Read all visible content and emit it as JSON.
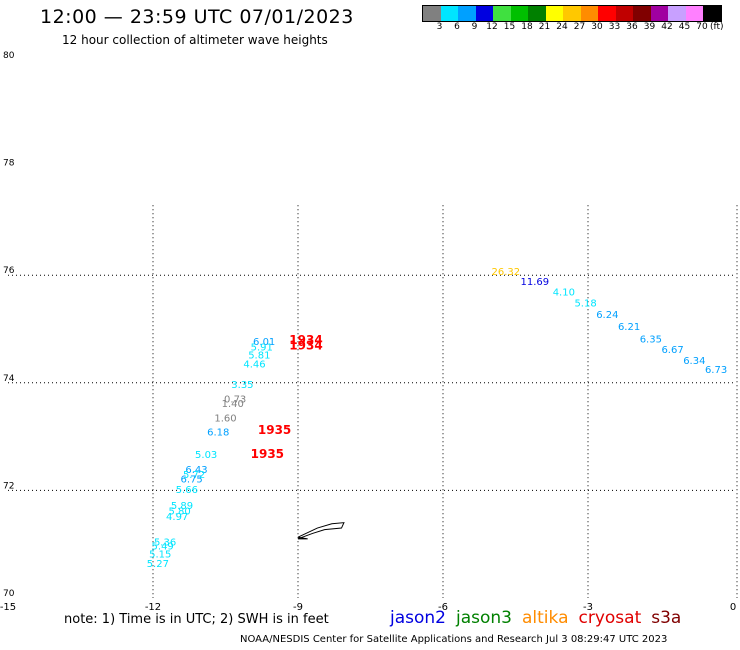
{
  "title": "12:00 — 23:59 UTC 07/01/2023",
  "subtitle": "12 hour collection of altimeter wave heights",
  "legend": {
    "swatches": [
      {
        "label": "3",
        "color": "#808080"
      },
      {
        "label": "6",
        "color": "#00e5ff"
      },
      {
        "label": "9",
        "color": "#00a0ff"
      },
      {
        "label": "12",
        "color": "#0000e0"
      },
      {
        "label": "15",
        "color": "#40e040"
      },
      {
        "label": "18",
        "color": "#00c000"
      },
      {
        "label": "21",
        "color": "#008000"
      },
      {
        "label": "24",
        "color": "#ffff00"
      },
      {
        "label": "27",
        "color": "#ffc800"
      },
      {
        "label": "30",
        "color": "#ff8c00"
      },
      {
        "label": "33",
        "color": "#ff0000"
      },
      {
        "label": "36",
        "color": "#c00000"
      },
      {
        "label": "39",
        "color": "#800000"
      },
      {
        "label": "42",
        "color": "#a000a0"
      },
      {
        "label": "45",
        "color": "#c8a0ff"
      },
      {
        "label": "70",
        "color": "#ff80ff"
      },
      {
        "label": "(ft)",
        "color": "#000000"
      }
    ]
  },
  "chart_data": {
    "type": "scatter",
    "xlim": [
      -15,
      0
    ],
    "ylim": [
      70,
      80
    ],
    "x_ticks": [
      "-15",
      "-12",
      "-9",
      "-6",
      "-3",
      "0"
    ],
    "y_ticks": [
      "70",
      "72",
      "74",
      "76",
      "78",
      "80"
    ],
    "grid": true,
    "times": [
      {
        "label": "1934",
        "x": -9.0,
        "y": 74.72,
        "color": "#ff0000"
      },
      {
        "label": "1934",
        "x": -9.0,
        "y": 74.62,
        "color": "#ff0000"
      },
      {
        "label": "1935",
        "x": -9.65,
        "y": 73.05,
        "color": "#ff0000"
      },
      {
        "label": "1935",
        "x": -9.8,
        "y": 72.6,
        "color": "#ff0000"
      }
    ],
    "points": [
      {
        "label": "26.32",
        "x": -4.7,
        "y": 76.0,
        "color": "#ffc800"
      },
      {
        "label": "11.69",
        "x": -4.1,
        "y": 75.82,
        "color": "#0000e0"
      },
      {
        "label": "4.10",
        "x": -3.5,
        "y": 75.62,
        "color": "#00e5ff"
      },
      {
        "label": "5.18",
        "x": -3.05,
        "y": 75.42,
        "color": "#00e5ff"
      },
      {
        "label": "6.24",
        "x": -2.6,
        "y": 75.2,
        "color": "#00a0ff"
      },
      {
        "label": "6.21",
        "x": -2.15,
        "y": 74.98,
        "color": "#00a0ff"
      },
      {
        "label": "6.35",
        "x": -1.7,
        "y": 74.75,
        "color": "#00a0ff"
      },
      {
        "label": "6.67",
        "x": -1.25,
        "y": 74.55,
        "color": "#00a0ff"
      },
      {
        "label": "6.34",
        "x": -0.8,
        "y": 74.35,
        "color": "#00a0ff"
      },
      {
        "label": "6.73",
        "x": -0.35,
        "y": 74.18,
        "color": "#00a0ff"
      },
      {
        "label": "6.01",
        "x": -9.7,
        "y": 74.7,
        "color": "#00a0ff"
      },
      {
        "label": "5.91",
        "x": -9.75,
        "y": 74.6,
        "color": "#00e5ff"
      },
      {
        "label": "5.81",
        "x": -9.8,
        "y": 74.45,
        "color": "#00e5ff"
      },
      {
        "label": "4.46",
        "x": -9.9,
        "y": 74.28,
        "color": "#00e5ff"
      },
      {
        "label": "3.35",
        "x": -10.15,
        "y": 73.9,
        "color": "#00e5ff"
      },
      {
        "label": "0.73",
        "x": -10.3,
        "y": 73.63,
        "color": "#808080"
      },
      {
        "label": "1.40",
        "x": -10.35,
        "y": 73.55,
        "color": "#808080"
      },
      {
        "label": "1.60",
        "x": -10.5,
        "y": 73.28,
        "color": "#808080"
      },
      {
        "label": "6.18",
        "x": -10.65,
        "y": 73.02,
        "color": "#00a0ff"
      },
      {
        "label": "5.03",
        "x": -10.9,
        "y": 72.6,
        "color": "#00e5ff"
      },
      {
        "label": "6.43",
        "x": -11.1,
        "y": 72.32,
        "color": "#00a0ff"
      },
      {
        "label": "5.72",
        "x": -11.15,
        "y": 72.23,
        "color": "#00e5ff"
      },
      {
        "label": "6.75",
        "x": -11.2,
        "y": 72.15,
        "color": "#00a0ff"
      },
      {
        "label": "5.66",
        "x": -11.3,
        "y": 71.95,
        "color": "#00e5ff"
      },
      {
        "label": "5.89",
        "x": -11.4,
        "y": 71.65,
        "color": "#00e5ff"
      },
      {
        "label": "5.80",
        "x": -11.45,
        "y": 71.55,
        "color": "#00e5ff"
      },
      {
        "label": "4.97",
        "x": -11.5,
        "y": 71.45,
        "color": "#00e5ff"
      },
      {
        "label": "5.36",
        "x": -11.75,
        "y": 70.98,
        "color": "#00e5ff"
      },
      {
        "label": "5.49",
        "x": -11.8,
        "y": 70.9,
        "color": "#00e5ff"
      },
      {
        "label": "5.15",
        "x": -11.85,
        "y": 70.75,
        "color": "#00e5ff"
      },
      {
        "label": "5.27",
        "x": -11.9,
        "y": 70.58,
        "color": "#00e5ff"
      }
    ],
    "coastline": [
      [
        -9.0,
        71.13
      ],
      [
        -8.6,
        71.3
      ],
      [
        -8.3,
        71.38
      ],
      [
        -8.05,
        71.4
      ],
      [
        -8.1,
        71.3
      ],
      [
        -8.45,
        71.27
      ],
      [
        -8.7,
        71.2
      ],
      [
        -9.0,
        71.1
      ],
      [
        -8.8,
        71.1
      ],
      [
        -9.0,
        71.13
      ]
    ]
  },
  "note": "note: 1) Time is in UTC; 2) SWH is in feet",
  "satellites": [
    {
      "name": "jason2",
      "color": "#0000e0"
    },
    {
      "name": "jason3",
      "color": "#008000"
    },
    {
      "name": "altika",
      "color": "#ff8c00"
    },
    {
      "name": "cryosat",
      "color": "#e00000"
    },
    {
      "name": "s3a",
      "color": "#800000"
    }
  ],
  "footer": "NOAA/NESDIS Center for Satellite Applications and Research    Jul  3 08:29:47 UTC 2023"
}
